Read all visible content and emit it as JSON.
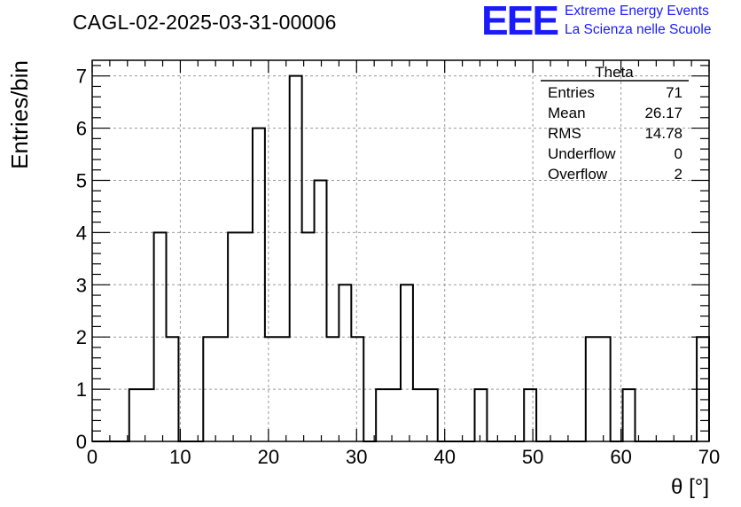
{
  "header": {
    "run_title": "CAGL-02-2025-03-31-00006",
    "logo_text": "EEE",
    "logo_line1": "Extreme Energy Events",
    "logo_line2": "La Scienza nelle Scuole"
  },
  "stats_box": {
    "title": "Theta",
    "rows": [
      {
        "label": "Entries",
        "value": "71"
      },
      {
        "label": "Mean",
        "value": "26.17"
      },
      {
        "label": "RMS",
        "value": "14.78"
      },
      {
        "label": "Underflow",
        "value": "0"
      },
      {
        "label": "Overflow",
        "value": "2"
      }
    ]
  },
  "chart_data": {
    "type": "bar",
    "histogram": true,
    "title": "CAGL-02-2025-03-31-00006",
    "xlabel": "θ [°]",
    "ylabel": "Entries/bin",
    "xlim": [
      0,
      70
    ],
    "ylim": [
      0,
      7.3
    ],
    "grid": true,
    "x_ticks": [
      0,
      10,
      20,
      30,
      40,
      50,
      60,
      70
    ],
    "y_ticks": [
      0,
      1,
      2,
      3,
      4,
      5,
      6,
      7
    ],
    "bin_edges": [
      0,
      1.4,
      2.8,
      4.2,
      5.6,
      7.0,
      8.4,
      9.8,
      11.2,
      12.6,
      14.0,
      15.4,
      16.8,
      18.2,
      19.6,
      21.0,
      22.4,
      23.8,
      25.2,
      26.6,
      28.0,
      29.4,
      30.8,
      32.2,
      33.6,
      35.0,
      36.4,
      37.8,
      39.2,
      40.6,
      42.0,
      43.4,
      44.8,
      46.2,
      47.6,
      49.0,
      50.4,
      51.8,
      53.2,
      54.6,
      56.0,
      57.4,
      58.8,
      60.2,
      61.6,
      63.0,
      64.4,
      65.8,
      67.2,
      68.6,
      70.0
    ],
    "values": [
      0,
      0,
      0,
      1,
      1,
      4,
      2,
      0,
      0,
      2,
      2,
      4,
      4,
      6,
      2,
      2,
      7,
      4,
      5,
      2,
      3,
      2,
      0,
      1,
      1,
      3,
      1,
      1,
      0,
      0,
      0,
      1,
      0,
      0,
      0,
      1,
      0,
      0,
      0,
      0,
      2,
      2,
      0,
      1,
      0,
      0,
      0,
      0,
      0,
      2
    ]
  }
}
